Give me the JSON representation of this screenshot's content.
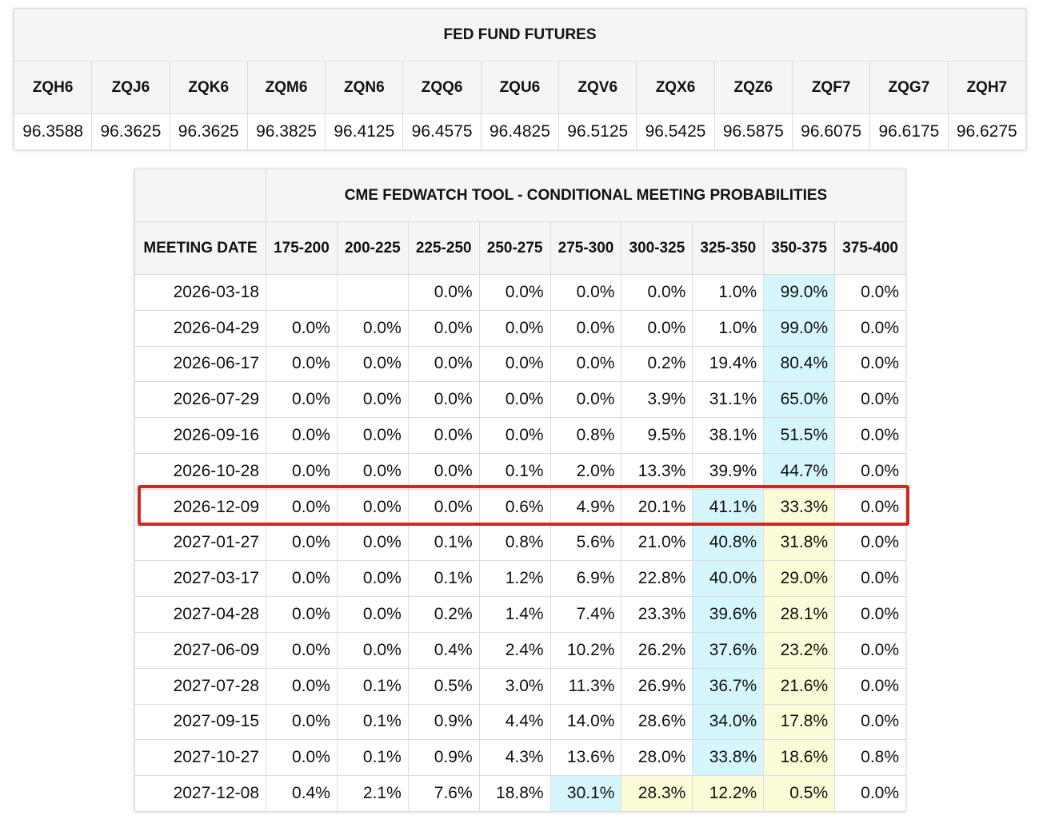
{
  "futures": {
    "title": "FED FUND FUTURES",
    "contracts": [
      {
        "symbol": "ZQH6",
        "price": "96.3588"
      },
      {
        "symbol": "ZQJ6",
        "price": "96.3625"
      },
      {
        "symbol": "ZQK6",
        "price": "96.3625"
      },
      {
        "symbol": "ZQM6",
        "price": "96.3825"
      },
      {
        "symbol": "ZQN6",
        "price": "96.4125"
      },
      {
        "symbol": "ZQQ6",
        "price": "96.4575"
      },
      {
        "symbol": "ZQU6",
        "price": "96.4825"
      },
      {
        "symbol": "ZQV6",
        "price": "96.5125"
      },
      {
        "symbol": "ZQX6",
        "price": "96.5425"
      },
      {
        "symbol": "ZQZ6",
        "price": "96.5875"
      },
      {
        "symbol": "ZQF7",
        "price": "96.6075"
      },
      {
        "symbol": "ZQG7",
        "price": "96.6175"
      },
      {
        "symbol": "ZQH7",
        "price": "96.6275"
      }
    ]
  },
  "fedwatch": {
    "title": "CME FEDWATCH TOOL - CONDITIONAL MEETING PROBABILITIES",
    "date_header": "MEETING DATE",
    "ranges": [
      "175-200",
      "200-225",
      "225-250",
      "250-275",
      "275-300",
      "300-325",
      "325-350",
      "350-375",
      "375-400"
    ],
    "highlight_colors": {
      "blue": "#d6f6fd",
      "yellow": "#fbfbd8",
      "selection_border": "#cc2a20"
    },
    "selected_date": "2026-12-09",
    "rows": [
      {
        "date": "2026-03-18",
        "values": [
          "",
          "",
          "0.0%",
          "0.0%",
          "0.0%",
          "0.0%",
          "1.0%",
          "99.0%",
          "0.0%"
        ],
        "hl": [
          "",
          "",
          "",
          "",
          "",
          "",
          "",
          "blue",
          ""
        ]
      },
      {
        "date": "2026-04-29",
        "values": [
          "0.0%",
          "0.0%",
          "0.0%",
          "0.0%",
          "0.0%",
          "0.0%",
          "1.0%",
          "99.0%",
          "0.0%"
        ],
        "hl": [
          "",
          "",
          "",
          "",
          "",
          "",
          "",
          "blue",
          ""
        ]
      },
      {
        "date": "2026-06-17",
        "values": [
          "0.0%",
          "0.0%",
          "0.0%",
          "0.0%",
          "0.0%",
          "0.2%",
          "19.4%",
          "80.4%",
          "0.0%"
        ],
        "hl": [
          "",
          "",
          "",
          "",
          "",
          "",
          "",
          "blue",
          ""
        ]
      },
      {
        "date": "2026-07-29",
        "values": [
          "0.0%",
          "0.0%",
          "0.0%",
          "0.0%",
          "0.0%",
          "3.9%",
          "31.1%",
          "65.0%",
          "0.0%"
        ],
        "hl": [
          "",
          "",
          "",
          "",
          "",
          "",
          "",
          "blue",
          ""
        ]
      },
      {
        "date": "2026-09-16",
        "values": [
          "0.0%",
          "0.0%",
          "0.0%",
          "0.0%",
          "0.8%",
          "9.5%",
          "38.1%",
          "51.5%",
          "0.0%"
        ],
        "hl": [
          "",
          "",
          "",
          "",
          "",
          "",
          "",
          "blue",
          ""
        ]
      },
      {
        "date": "2026-10-28",
        "values": [
          "0.0%",
          "0.0%",
          "0.0%",
          "0.1%",
          "2.0%",
          "13.3%",
          "39.9%",
          "44.7%",
          "0.0%"
        ],
        "hl": [
          "",
          "",
          "",
          "",
          "",
          "",
          "",
          "blue",
          ""
        ]
      },
      {
        "date": "2026-12-09",
        "values": [
          "0.0%",
          "0.0%",
          "0.0%",
          "0.6%",
          "4.9%",
          "20.1%",
          "41.1%",
          "33.3%",
          "0.0%"
        ],
        "hl": [
          "",
          "",
          "",
          "",
          "",
          "",
          "blue",
          "yellow",
          ""
        ]
      },
      {
        "date": "2027-01-27",
        "values": [
          "0.0%",
          "0.0%",
          "0.1%",
          "0.8%",
          "5.6%",
          "21.0%",
          "40.8%",
          "31.8%",
          "0.0%"
        ],
        "hl": [
          "",
          "",
          "",
          "",
          "",
          "",
          "blue",
          "yellow",
          ""
        ]
      },
      {
        "date": "2027-03-17",
        "values": [
          "0.0%",
          "0.0%",
          "0.1%",
          "1.2%",
          "6.9%",
          "22.8%",
          "40.0%",
          "29.0%",
          "0.0%"
        ],
        "hl": [
          "",
          "",
          "",
          "",
          "",
          "",
          "blue",
          "yellow",
          ""
        ]
      },
      {
        "date": "2027-04-28",
        "values": [
          "0.0%",
          "0.0%",
          "0.2%",
          "1.4%",
          "7.4%",
          "23.3%",
          "39.6%",
          "28.1%",
          "0.0%"
        ],
        "hl": [
          "",
          "",
          "",
          "",
          "",
          "",
          "blue",
          "yellow",
          ""
        ]
      },
      {
        "date": "2027-06-09",
        "values": [
          "0.0%",
          "0.0%",
          "0.4%",
          "2.4%",
          "10.2%",
          "26.2%",
          "37.6%",
          "23.2%",
          "0.0%"
        ],
        "hl": [
          "",
          "",
          "",
          "",
          "",
          "",
          "blue",
          "yellow",
          ""
        ]
      },
      {
        "date": "2027-07-28",
        "values": [
          "0.0%",
          "0.1%",
          "0.5%",
          "3.0%",
          "11.3%",
          "26.9%",
          "36.7%",
          "21.6%",
          "0.0%"
        ],
        "hl": [
          "",
          "",
          "",
          "",
          "",
          "",
          "blue",
          "yellow",
          ""
        ]
      },
      {
        "date": "2027-09-15",
        "values": [
          "0.0%",
          "0.1%",
          "0.9%",
          "4.4%",
          "14.0%",
          "28.6%",
          "34.0%",
          "17.8%",
          "0.0%"
        ],
        "hl": [
          "",
          "",
          "",
          "",
          "",
          "",
          "blue",
          "yellow",
          ""
        ]
      },
      {
        "date": "2027-10-27",
        "values": [
          "0.0%",
          "0.1%",
          "0.9%",
          "4.3%",
          "13.6%",
          "28.0%",
          "33.8%",
          "18.6%",
          "0.8%"
        ],
        "hl": [
          "",
          "",
          "",
          "",
          "",
          "",
          "blue",
          "yellow",
          ""
        ]
      },
      {
        "date": "2027-12-08",
        "values": [
          "0.4%",
          "2.1%",
          "7.6%",
          "18.8%",
          "30.1%",
          "28.3%",
          "12.2%",
          "0.5%",
          "0.0%"
        ],
        "hl": [
          "",
          "",
          "",
          "",
          "blue",
          "yellow",
          "yellow",
          "yellow",
          ""
        ]
      }
    ]
  }
}
